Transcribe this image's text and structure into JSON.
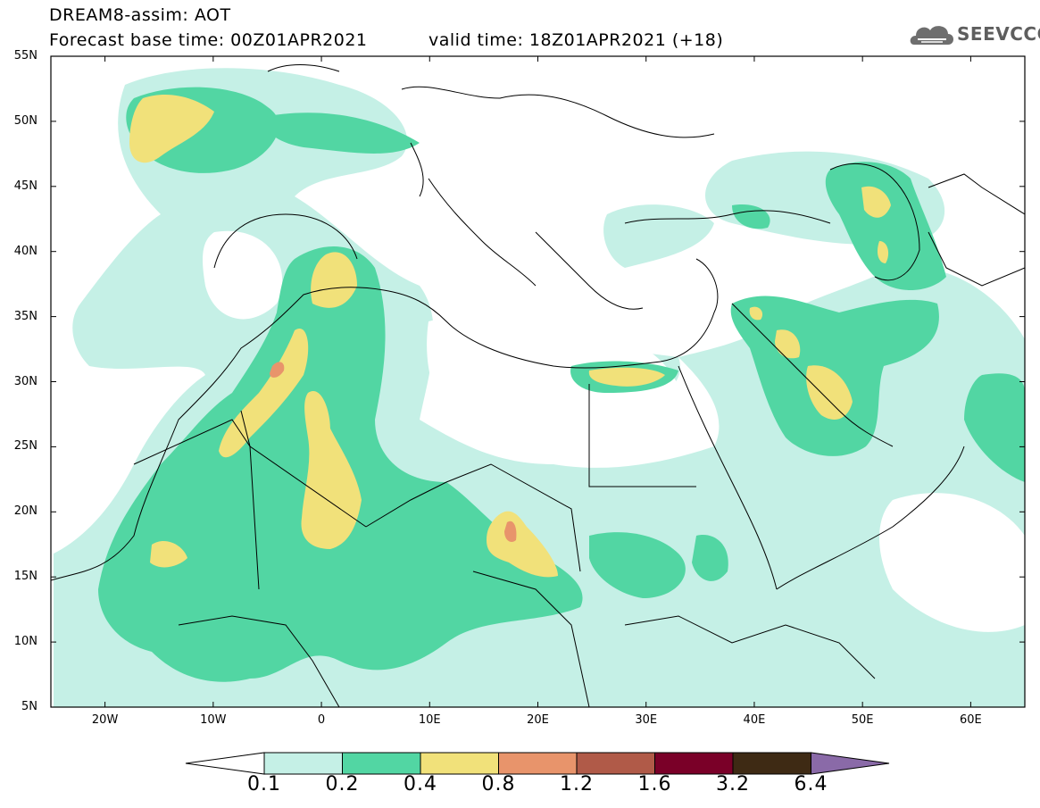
{
  "header": {
    "title": "DREAM8-assim: AOT",
    "base_time": "Forecast base time: 00Z01APR2021",
    "valid_time": "valid time: 18Z01APR2021 (+18)"
  },
  "logo": {
    "text": "SEEVCCC",
    "icon": "cloud-logo-icon"
  },
  "map": {
    "lon_range": [
      -25,
      65
    ],
    "lat_range": [
      5,
      55
    ],
    "lat_labels": [
      "55N",
      "50N",
      "45N",
      "40N",
      "35N",
      "30N",
      "25N",
      "20N",
      "15N",
      "10N",
      "5N"
    ],
    "lon_labels": [
      "20W",
      "10W",
      "0",
      "10E",
      "20E",
      "30E",
      "40E",
      "50E",
      "60E"
    ]
  },
  "colorbar": {
    "labels": [
      "0.1",
      "0.2",
      "0.4",
      "0.8",
      "1.2",
      "1.6",
      "3.2",
      "6.4"
    ],
    "colors": [
      "#ffffff",
      "#c5f0e6",
      "#52d6a3",
      "#f1e17a",
      "#e8946b",
      "#b05a48",
      "#7a0028",
      "#3e2a14",
      "#8a6aa8"
    ]
  }
}
